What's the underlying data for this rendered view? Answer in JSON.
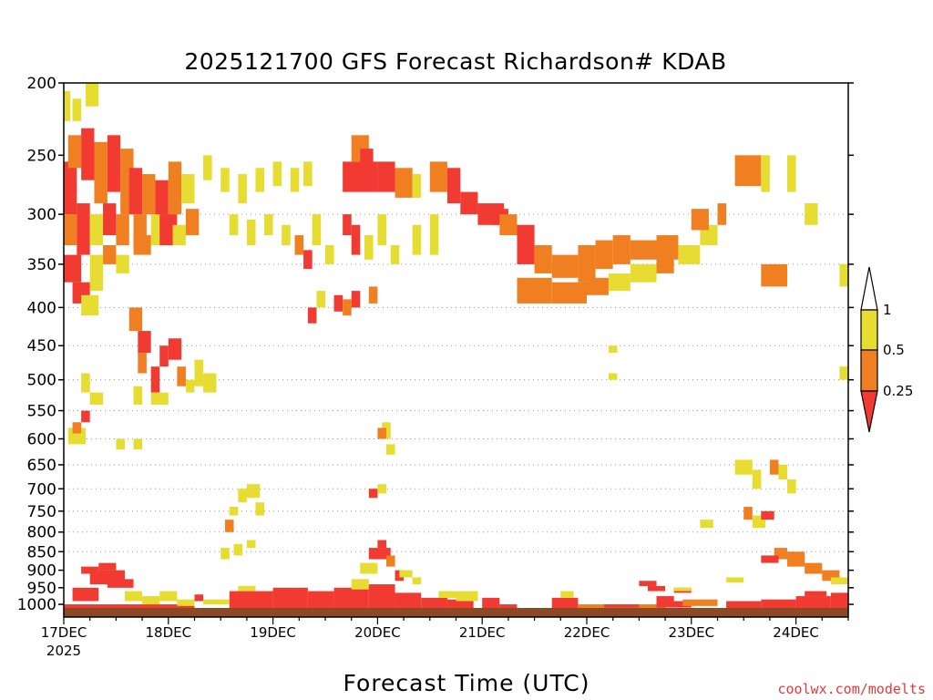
{
  "chart_data": {
    "type": "heatmap",
    "title": "2025121700 GFS Forecast Richardson# KDAB",
    "xlabel": "Forecast Time (UTC)",
    "ylabel": "",
    "x_unit": "hours since 17DEC 00Z",
    "xlim": [
      0,
      180
    ],
    "ylim": [
      1040,
      200
    ],
    "y_scale": "log",
    "y_ticks": [
      200,
      250,
      300,
      350,
      400,
      450,
      500,
      550,
      600,
      650,
      700,
      750,
      800,
      850,
      900,
      950,
      1000
    ],
    "x_ticks": [
      {
        "x": 0,
        "label": "17DEC",
        "sublabel": "2025"
      },
      {
        "x": 24,
        "label": "18DEC"
      },
      {
        "x": 48,
        "label": "19DEC"
      },
      {
        "x": 72,
        "label": "20DEC"
      },
      {
        "x": 96,
        "label": "21DEC"
      },
      {
        "x": 120,
        "label": "22DEC"
      },
      {
        "x": 144,
        "label": "23DEC"
      },
      {
        "x": 168,
        "label": "24DEC"
      }
    ],
    "grid": "dotted horizontal lines at pressure levels 300-850",
    "legend": {
      "placement": "right",
      "levels": [
        "0.25",
        "0.5",
        "1"
      ],
      "colors": {
        "lt025": "#f03a32",
        "b025_05": "#f07f22",
        "b05_1": "#e6dc32"
      }
    },
    "cells": [
      [
        0,
        1.5,
        205,
        225,
        "y"
      ],
      [
        2,
        4,
        210,
        225,
        "y"
      ],
      [
        5,
        8,
        200,
        215,
        "y"
      ],
      [
        0,
        3,
        255,
        300,
        "r"
      ],
      [
        1,
        4,
        235,
        260,
        "o"
      ],
      [
        4,
        7,
        230,
        270,
        "r"
      ],
      [
        7,
        10,
        240,
        290,
        "o"
      ],
      [
        10,
        13,
        235,
        280,
        "r"
      ],
      [
        13,
        16,
        245,
        300,
        "o"
      ],
      [
        0,
        3,
        300,
        330,
        "o"
      ],
      [
        3,
        6,
        290,
        340,
        "r"
      ],
      [
        6,
        9,
        300,
        330,
        "y"
      ],
      [
        9,
        12,
        290,
        320,
        "r"
      ],
      [
        12,
        15,
        300,
        330,
        "o"
      ],
      [
        15,
        18,
        260,
        300,
        "r"
      ],
      [
        18,
        21,
        265,
        300,
        "o"
      ],
      [
        21,
        24,
        270,
        310,
        "r"
      ],
      [
        24,
        27,
        255,
        300,
        "o"
      ],
      [
        27,
        30,
        265,
        290,
        "y"
      ],
      [
        16,
        19,
        300,
        335,
        "o"
      ],
      [
        20,
        24,
        300,
        330,
        "y"
      ],
      [
        0,
        4,
        340,
        370,
        "r"
      ],
      [
        2,
        6,
        370,
        395,
        "r"
      ],
      [
        4,
        8,
        385,
        410,
        "y"
      ],
      [
        6,
        9,
        340,
        380,
        "y"
      ],
      [
        9,
        12,
        330,
        350,
        "o"
      ],
      [
        12,
        15,
        340,
        360,
        "y"
      ],
      [
        16,
        20,
        320,
        340,
        "o"
      ],
      [
        22,
        26,
        300,
        330,
        "r"
      ],
      [
        25,
        28,
        310,
        330,
        "y"
      ],
      [
        28,
        31,
        295,
        320,
        "o"
      ],
      [
        32,
        34,
        250,
        270,
        "y"
      ],
      [
        36,
        38,
        260,
        280,
        "y"
      ],
      [
        40,
        42,
        265,
        290,
        "y"
      ],
      [
        44,
        46,
        260,
        280,
        "y"
      ],
      [
        48,
        50,
        255,
        275,
        "y"
      ],
      [
        52,
        54,
        260,
        280,
        "y"
      ],
      [
        55,
        57,
        255,
        275,
        "y"
      ],
      [
        38,
        40,
        300,
        320,
        "y"
      ],
      [
        42,
        44,
        305,
        330,
        "y"
      ],
      [
        46,
        48,
        300,
        320,
        "y"
      ],
      [
        50,
        52,
        310,
        330,
        "y"
      ],
      [
        53,
        55,
        320,
        340,
        "o"
      ],
      [
        55,
        57,
        335,
        355,
        "r"
      ],
      [
        57,
        59,
        300,
        330,
        "y"
      ],
      [
        60,
        62,
        330,
        350,
        "y"
      ],
      [
        64,
        72,
        255,
        280,
        "r"
      ],
      [
        66,
        70,
        235,
        255,
        "o"
      ],
      [
        68,
        71,
        245,
        260,
        "r"
      ],
      [
        72,
        76,
        255,
        280,
        "r"
      ],
      [
        76,
        80,
        260,
        285,
        "o"
      ],
      [
        80,
        82,
        265,
        285,
        "y"
      ],
      [
        84,
        88,
        255,
        280,
        "o"
      ],
      [
        88,
        91,
        260,
        290,
        "r"
      ],
      [
        91,
        95,
        280,
        300,
        "r"
      ],
      [
        95,
        101,
        290,
        310,
        "r"
      ],
      [
        98,
        102,
        295,
        310,
        "r"
      ],
      [
        64,
        66,
        300,
        320,
        "r"
      ],
      [
        66,
        68,
        310,
        340,
        "r"
      ],
      [
        69,
        71,
        320,
        345,
        "y"
      ],
      [
        72,
        74,
        300,
        330,
        "y"
      ],
      [
        75,
        77,
        330,
        350,
        "y"
      ],
      [
        80,
        82,
        310,
        340,
        "y"
      ],
      [
        84,
        86,
        300,
        340,
        "y"
      ],
      [
        100,
        104,
        300,
        320,
        "o"
      ],
      [
        104,
        108,
        310,
        350,
        "r"
      ],
      [
        108,
        112,
        330,
        360,
        "o"
      ],
      [
        112,
        118,
        340,
        365,
        "o"
      ],
      [
        118,
        122,
        330,
        370,
        "o"
      ],
      [
        122,
        126,
        325,
        355,
        "o"
      ],
      [
        126,
        130,
        320,
        350,
        "o"
      ],
      [
        130,
        136,
        325,
        345,
        "o"
      ],
      [
        136,
        141,
        320,
        345,
        "o"
      ],
      [
        141,
        146,
        330,
        350,
        "y"
      ],
      [
        146,
        150,
        310,
        330,
        "y"
      ],
      [
        150,
        152,
        290,
        310,
        "o"
      ],
      [
        104,
        112,
        365,
        395,
        "o"
      ],
      [
        112,
        120,
        370,
        395,
        "o"
      ],
      [
        120,
        125,
        365,
        385,
        "o"
      ],
      [
        125,
        130,
        360,
        380,
        "y"
      ],
      [
        130,
        136,
        350,
        370,
        "y"
      ],
      [
        136,
        140,
        340,
        360,
        "o"
      ],
      [
        144,
        148,
        295,
        315,
        "o"
      ],
      [
        154,
        160,
        250,
        275,
        "o"
      ],
      [
        160,
        162,
        250,
        280,
        "y"
      ],
      [
        166,
        168,
        250,
        280,
        "y"
      ],
      [
        170,
        173,
        290,
        310,
        "y"
      ],
      [
        160,
        166,
        350,
        375,
        "o"
      ],
      [
        178,
        180,
        350,
        375,
        "y"
      ],
      [
        178,
        180,
        480,
        500,
        "y"
      ],
      [
        17,
        20,
        430,
        460,
        "r"
      ],
      [
        15,
        18,
        400,
        430,
        "o"
      ],
      [
        17,
        19,
        460,
        490,
        "o"
      ],
      [
        20,
        22,
        480,
        520,
        "r"
      ],
      [
        22,
        24,
        450,
        480,
        "r"
      ],
      [
        24,
        27,
        440,
        470,
        "r"
      ],
      [
        26,
        28,
        480,
        510,
        "o"
      ],
      [
        28,
        30,
        500,
        520,
        "y"
      ],
      [
        30,
        32,
        470,
        510,
        "y"
      ],
      [
        32,
        35,
        490,
        520,
        "y"
      ],
      [
        20,
        24,
        520,
        540,
        "y"
      ],
      [
        16,
        18,
        510,
        540,
        "y"
      ],
      [
        4,
        6,
        490,
        520,
        "y"
      ],
      [
        1,
        5,
        580,
        610,
        "y"
      ],
      [
        2,
        4,
        570,
        590,
        "o"
      ],
      [
        4,
        6,
        550,
        570,
        "r"
      ],
      [
        12,
        14,
        600,
        620,
        "y"
      ],
      [
        16,
        18,
        600,
        620,
        "y"
      ],
      [
        6,
        9,
        520,
        540,
        "y"
      ],
      [
        62,
        64,
        385,
        405,
        "r"
      ],
      [
        64,
        66,
        390,
        410,
        "o"
      ],
      [
        66,
        68,
        380,
        400,
        "r"
      ],
      [
        70,
        72,
        375,
        395,
        "o"
      ],
      [
        58,
        60,
        380,
        400,
        "y"
      ],
      [
        56,
        58,
        400,
        420,
        "r"
      ],
      [
        73,
        75,
        570,
        600,
        "y"
      ],
      [
        72,
        74,
        580,
        600,
        "o"
      ],
      [
        74,
        76,
        610,
        630,
        "y"
      ],
      [
        37,
        39,
        770,
        800,
        "o"
      ],
      [
        36,
        38,
        840,
        870,
        "y"
      ],
      [
        39,
        41,
        830,
        860,
        "y"
      ],
      [
        42,
        44,
        820,
        840,
        "y"
      ],
      [
        38,
        40,
        740,
        760,
        "y"
      ],
      [
        40,
        42,
        700,
        730,
        "y"
      ],
      [
        42,
        45,
        690,
        720,
        "y"
      ],
      [
        44,
        46,
        730,
        760,
        "y"
      ],
      [
        70,
        75,
        840,
        870,
        "r"
      ],
      [
        72,
        74,
        820,
        840,
        "r"
      ],
      [
        74,
        76,
        860,
        890,
        "o"
      ],
      [
        68,
        72,
        880,
        910,
        "y"
      ],
      [
        76,
        78,
        900,
        930,
        "r"
      ],
      [
        70,
        72,
        700,
        720,
        "r"
      ],
      [
        72,
        74,
        690,
        710,
        "y"
      ],
      [
        77,
        80,
        900,
        920,
        "y"
      ],
      [
        80,
        82,
        920,
        940,
        "y"
      ],
      [
        154,
        158,
        640,
        670,
        "y"
      ],
      [
        158,
        160,
        660,
        700,
        "y"
      ],
      [
        162,
        164,
        640,
        670,
        "o"
      ],
      [
        164,
        166,
        650,
        680,
        "y"
      ],
      [
        166,
        168,
        680,
        710,
        "y"
      ],
      [
        156,
        158,
        740,
        770,
        "o"
      ],
      [
        158,
        161,
        760,
        790,
        "y"
      ],
      [
        160,
        163,
        750,
        770,
        "r"
      ],
      [
        146,
        149,
        770,
        790,
        "y"
      ],
      [
        163,
        166,
        840,
        870,
        "o"
      ],
      [
        166,
        170,
        850,
        890,
        "o"
      ],
      [
        170,
        174,
        880,
        910,
        "o"
      ],
      [
        174,
        178,
        900,
        930,
        "o"
      ],
      [
        176,
        180,
        920,
        940,
        "y"
      ],
      [
        160,
        164,
        860,
        880,
        "r"
      ],
      [
        125,
        127,
        450,
        460,
        "y"
      ],
      [
        125,
        127,
        490,
        500,
        "y"
      ],
      [
        0,
        30,
        1000,
        1018,
        "r"
      ],
      [
        2,
        8,
        950,
        990,
        "r"
      ],
      [
        6,
        14,
        900,
        940,
        "r"
      ],
      [
        10,
        16,
        925,
        950,
        "r"
      ],
      [
        4,
        8,
        890,
        910,
        "r"
      ],
      [
        8,
        12,
        880,
        900,
        "r"
      ],
      [
        14,
        18,
        960,
        990,
        "y"
      ],
      [
        18,
        22,
        975,
        1000,
        "y"
      ],
      [
        22,
        26,
        960,
        990,
        "y"
      ],
      [
        26,
        30,
        985,
        1005,
        "y"
      ],
      [
        30,
        32,
        970,
        990,
        "r"
      ],
      [
        32,
        38,
        985,
        1000,
        "y"
      ],
      [
        38,
        48,
        960,
        1015,
        "r"
      ],
      [
        40,
        44,
        945,
        960,
        "y"
      ],
      [
        48,
        56,
        950,
        1015,
        "r"
      ],
      [
        56,
        62,
        960,
        1015,
        "r"
      ],
      [
        62,
        70,
        950,
        1015,
        "r"
      ],
      [
        66,
        70,
        925,
        955,
        "y"
      ],
      [
        70,
        76,
        940,
        1015,
        "r"
      ],
      [
        76,
        82,
        965,
        1015,
        "r"
      ],
      [
        82,
        88,
        980,
        1015,
        "r"
      ],
      [
        86,
        90,
        960,
        980,
        "y"
      ],
      [
        88,
        94,
        985,
        1015,
        "r"
      ],
      [
        90,
        95,
        960,
        990,
        "y"
      ],
      [
        96,
        100,
        980,
        1015,
        "r"
      ],
      [
        100,
        104,
        1000,
        1018,
        "r"
      ],
      [
        112,
        118,
        980,
        1015,
        "r"
      ],
      [
        114,
        117,
        960,
        980,
        "y"
      ],
      [
        118,
        138,
        1000,
        1015,
        "o"
      ],
      [
        124,
        132,
        1000,
        1010,
        "r"
      ],
      [
        136,
        144,
        990,
        1010,
        "r"
      ],
      [
        136,
        140,
        975,
        990,
        "r"
      ],
      [
        142,
        150,
        985,
        1005,
        "o"
      ],
      [
        152,
        160,
        990,
        1015,
        "r"
      ],
      [
        160,
        168,
        985,
        1015,
        "r"
      ],
      [
        168,
        176,
        975,
        1015,
        "r"
      ],
      [
        176,
        180,
        965,
        1015,
        "r"
      ],
      [
        170,
        175,
        960,
        975,
        "r"
      ],
      [
        134,
        138,
        945,
        960,
        "r"
      ],
      [
        140,
        144,
        950,
        965,
        "r"
      ],
      [
        152,
        156,
        920,
        935,
        "y"
      ],
      [
        140,
        144,
        950,
        960,
        "y"
      ],
      [
        132,
        136,
        930,
        945,
        "r"
      ]
    ]
  }
}
